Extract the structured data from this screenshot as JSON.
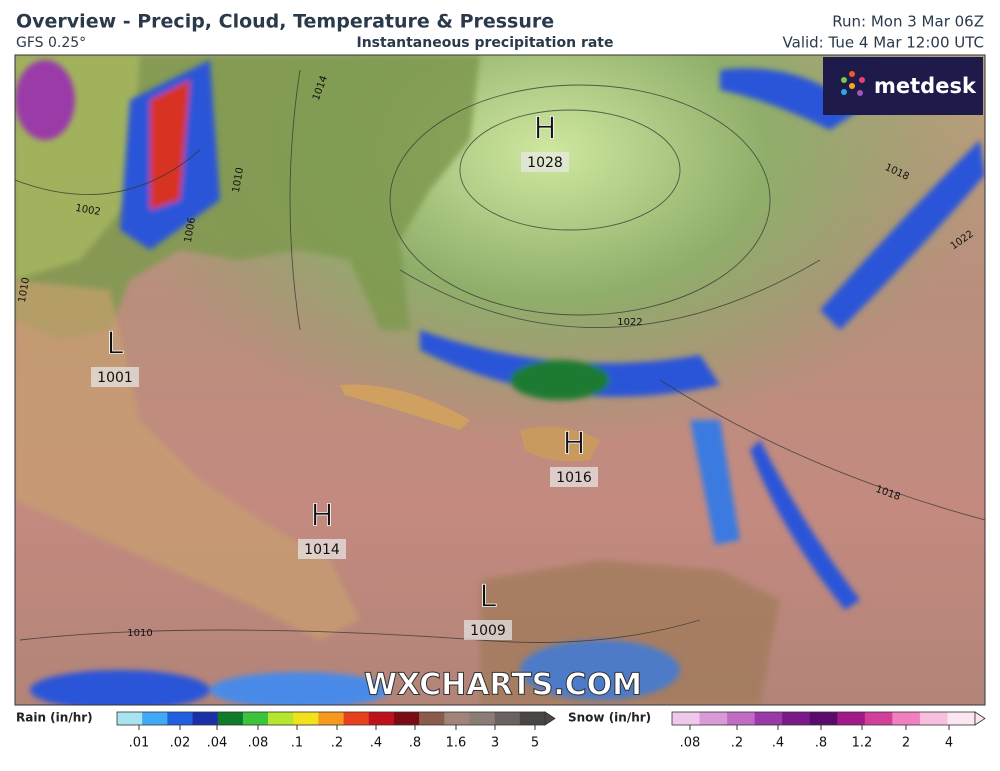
{
  "header": {
    "title": "Overview - Precip, Cloud, Temperature & Pressure",
    "model": "GFS 0.25°",
    "subtitle": "Instantaneous precipitation rate",
    "run": "Run: Mon 3 Mar 06Z",
    "valid": "Valid: Tue 4 Mar 12:00 UTC"
  },
  "brand": "metdesk",
  "watermark": "WXCHARTS.COM",
  "pressure_centers": [
    {
      "type": "H",
      "value": "1028"
    },
    {
      "type": "L",
      "value": "1001"
    },
    {
      "type": "H",
      "value": "1016"
    },
    {
      "type": "H",
      "value": "1014"
    },
    {
      "type": "L",
      "value": "1009"
    }
  ],
  "isobar_labels": [
    "1014",
    "1002",
    "1010",
    "1006",
    "1022",
    "1018",
    "1022",
    "1018",
    "1010",
    "1010"
  ],
  "legend": {
    "rain": {
      "title": "Rain (in/hr)",
      "colors": [
        "#a8e4f0",
        "#3fa9f5",
        "#1f5fe0",
        "#1a2fa8",
        "#0f7a2a",
        "#3cc43c",
        "#b7e62e",
        "#f2e21c",
        "#f59a1c",
        "#e8401c",
        "#c0101c",
        "#7a0a14",
        "#8a5a4a",
        "#a0847a",
        "#8c7c76",
        "#6a625e",
        "#4a4644"
      ],
      "ticks": [
        ".01",
        ".02",
        ".04",
        ".08",
        ".1",
        ".2",
        ".4",
        ".8",
        "1.6",
        "3",
        "5"
      ]
    },
    "snow": {
      "title": "Snow (in/hr)",
      "colors": [
        "#f0c8ec",
        "#d99ad8",
        "#c06cc4",
        "#9a3aa8",
        "#7a1a8a",
        "#5a0a6a",
        "#a01a8a",
        "#d0409a",
        "#f080c0",
        "#f8c0e0",
        "#fce6f2"
      ],
      "ticks": [
        ".08",
        ".2",
        ".4",
        ".8",
        "1.2",
        "2",
        "4"
      ]
    }
  }
}
